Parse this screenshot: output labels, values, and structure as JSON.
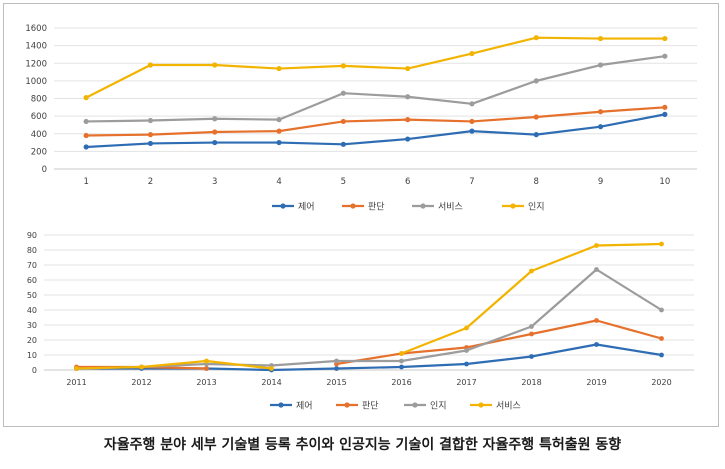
{
  "caption": "자율주행 분야 세부 기술별 등록 추이와 인공지능 기술이 결합한 자율주행 특허출원 동향",
  "chart_data": [
    {
      "type": "line",
      "x": [
        "1",
        "2",
        "3",
        "4",
        "5",
        "6",
        "7",
        "8",
        "9",
        "10"
      ],
      "ylim": [
        0,
        1600
      ],
      "yticks": [
        0,
        200,
        400,
        600,
        800,
        1000,
        1200,
        1400,
        1600
      ],
      "grid": true,
      "legend_position": "bottom",
      "series": [
        {
          "name": "제어",
          "color": "#2e6db4",
          "values": [
            250,
            290,
            300,
            300,
            280,
            340,
            430,
            390,
            480,
            620
          ]
        },
        {
          "name": "판단",
          "color": "#e6712c",
          "values": [
            380,
            390,
            420,
            430,
            540,
            560,
            540,
            590,
            650,
            700
          ]
        },
        {
          "name": "서비스",
          "color": "#9c9c9c",
          "values": [
            540,
            550,
            570,
            560,
            860,
            820,
            740,
            1000,
            1180,
            1280
          ]
        },
        {
          "name": "인지",
          "color": "#f2b400",
          "values": [
            810,
            1180,
            1180,
            1140,
            1170,
            1140,
            1310,
            1490,
            1480,
            1480
          ]
        }
      ]
    },
    {
      "type": "line",
      "x": [
        "2011",
        "2012",
        "2013",
        "2014",
        "2015",
        "2016",
        "2017",
        "2018",
        "2019",
        "2020"
      ],
      "ylim": [
        0,
        90
      ],
      "yticks": [
        0,
        10,
        20,
        30,
        40,
        50,
        60,
        70,
        80,
        90
      ],
      "grid": true,
      "legend_position": "bottom",
      "series": [
        {
          "name": "제어",
          "color": "#2e6db4",
          "values": [
            1,
            1,
            1,
            0,
            1,
            2,
            4,
            9,
            17,
            10
          ]
        },
        {
          "name": "판단",
          "color": "#e6712c",
          "values": [
            2,
            2,
            1,
            null,
            4,
            11,
            15,
            24,
            33,
            21
          ]
        },
        {
          "name": "인지",
          "color": "#9c9c9c",
          "values": [
            1,
            2,
            4,
            3,
            6,
            6,
            13,
            29,
            67,
            40
          ]
        },
        {
          "name": "서비스",
          "color": "#f2b400",
          "values": [
            1,
            2,
            6,
            1,
            null,
            11,
            28,
            66,
            83,
            84
          ]
        }
      ]
    }
  ]
}
